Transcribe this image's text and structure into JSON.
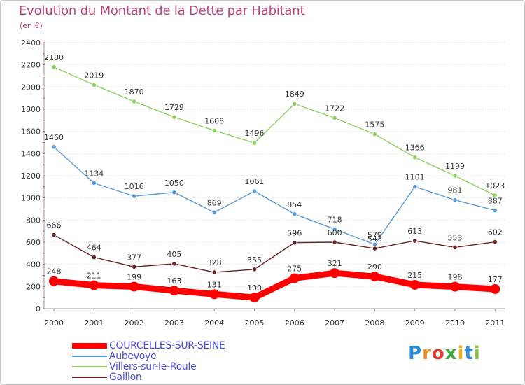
{
  "header": {
    "title": "Evolution du Montant de la Dette par Habitant",
    "subtitle": "(en €)"
  },
  "brand": {
    "logo_letters": [
      "P",
      "r",
      "o",
      "x",
      "i",
      "t",
      "i"
    ],
    "logo_colors": [
      "#2a8fd6",
      "#f08a1c",
      "#e63a2e",
      "#3aa63a",
      "#f0b21c",
      "#2a8fd6",
      "#8ac43a"
    ]
  },
  "chart_data": {
    "type": "line",
    "title": "Evolution du Montant de la Dette par Habitant",
    "ylabel": "(en €)",
    "xlabel": "",
    "ylim": [
      0,
      2400
    ],
    "yticks": [
      0,
      200,
      400,
      600,
      800,
      1000,
      1200,
      1400,
      1600,
      1800,
      2000,
      2200,
      2400
    ],
    "grid": "horizontal",
    "legend_position": "bottom-left",
    "x": [
      "2000",
      "2001",
      "2002",
      "2003",
      "2004",
      "2005",
      "2006",
      "2007",
      "2008",
      "2009",
      "2010",
      "2011"
    ],
    "series": [
      {
        "name": "COURCELLES-SUR-SEINE",
        "color": "#ff0000",
        "values": [
          248,
          211,
          199,
          163,
          131,
          100,
          275,
          321,
          290,
          215,
          198,
          177
        ]
      },
      {
        "name": "Aubevoye",
        "color": "#5b9bd5",
        "values": [
          1460,
          1134,
          1016,
          1050,
          869,
          1061,
          854,
          718,
          579,
          1101,
          981,
          887
        ]
      },
      {
        "name": "Villers-sur-le-Roule",
        "color": "#8fd05a",
        "values": [
          2180,
          2019,
          1870,
          1729,
          1608,
          1496,
          1849,
          1722,
          1575,
          1366,
          1199,
          1023
        ]
      },
      {
        "name": "Gaillon",
        "color": "#6b2424",
        "values": [
          666,
          464,
          377,
          405,
          328,
          355,
          596,
          600,
          543,
          613,
          553,
          602
        ]
      }
    ]
  }
}
